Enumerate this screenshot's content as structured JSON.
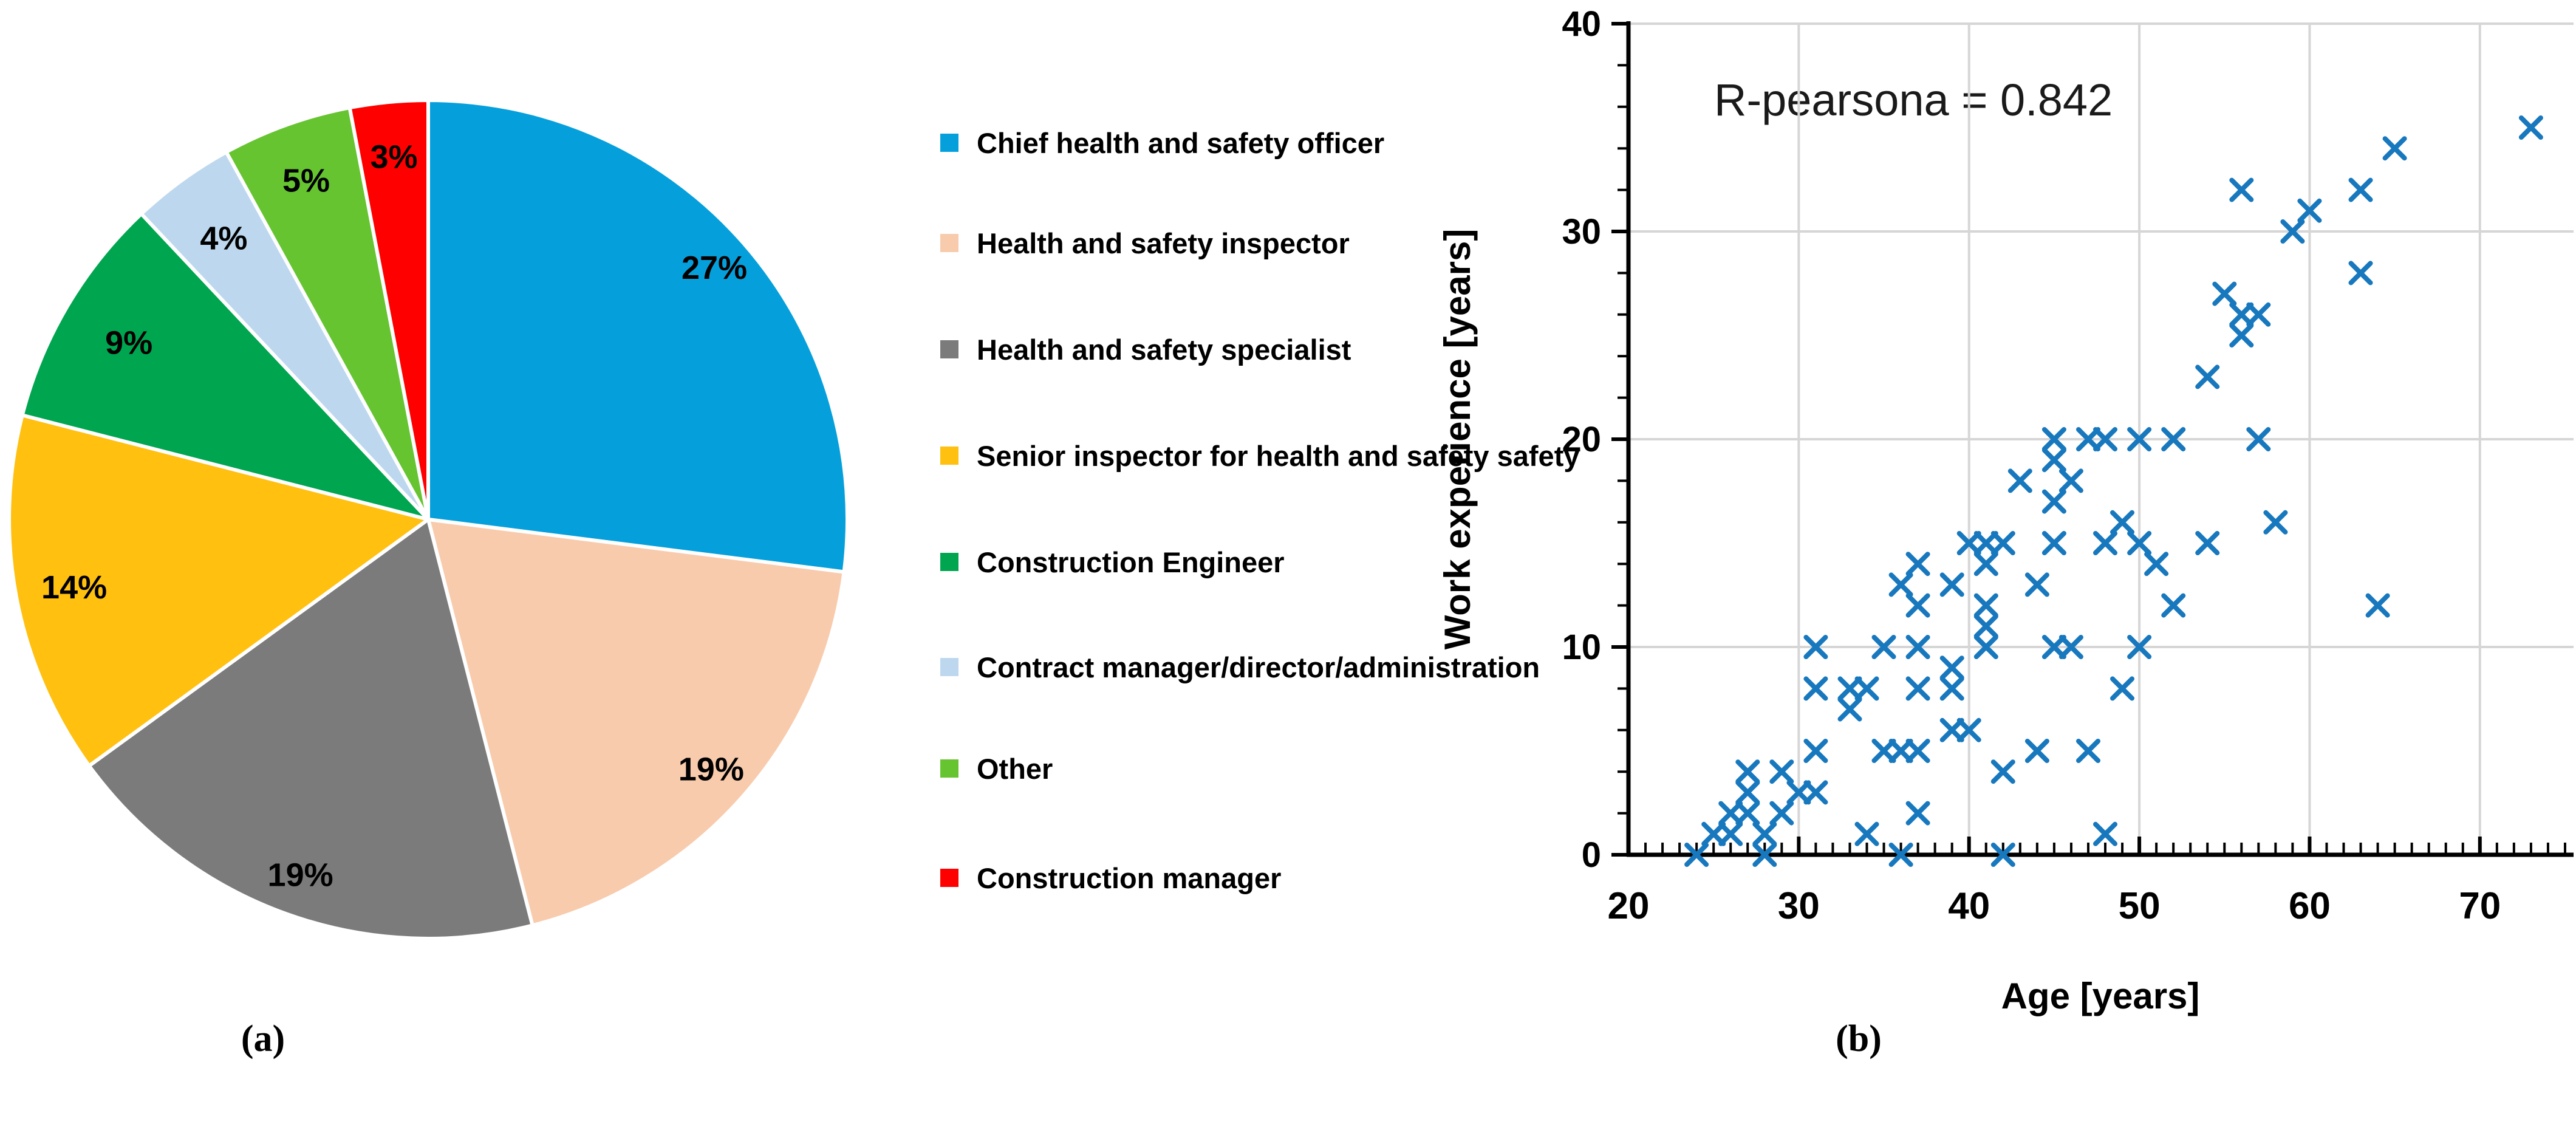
{
  "figure": {
    "caption_a": "(a)",
    "caption_b": "(b)",
    "background": "#ffffff"
  },
  "chart_data": [
    {
      "type": "pie",
      "title": "",
      "legend_position": "right",
      "start_angle_deg": 0,
      "direction": "clockwise",
      "slices": [
        {
          "label": "Chief health and safety officer",
          "value": 27,
          "label_text": "27%",
          "color": "#05A0DC",
          "label_r": 0.91
        },
        {
          "label": "Health and safety inspector",
          "value": 19,
          "label_text": "19%",
          "color": "#F8CBAD",
          "label_r": 0.9
        },
        {
          "label": "Health and safety specialist",
          "value": 19,
          "label_text": "19%",
          "color": "#7B7B7B",
          "label_r": 0.9
        },
        {
          "label": "Senior inspector for health and safety safety",
          "value": 14,
          "label_text": "14%",
          "color": "#FFC010",
          "label_r": 0.86
        },
        {
          "label": "Construction Engineer",
          "value": 9,
          "label_text": "9%",
          "color": "#00A550",
          "label_r": 0.83
        },
        {
          "label": "Contract manager/director/administration",
          "value": 4,
          "label_text": "4%",
          "color": "#BDD8EE",
          "label_r": 0.83
        },
        {
          "label": "Other",
          "value": 5,
          "label_text": "5%",
          "color": "#66C431",
          "label_r": 0.86
        },
        {
          "label": "Construction manager",
          "value": 3,
          "label_text": "3%",
          "color": "#FF0000",
          "label_r": 0.87
        }
      ]
    },
    {
      "type": "scatter",
      "annotation": "R-pearsona = 0.842",
      "xlabel": "Age [years]",
      "ylabel": "Work experience [years]",
      "xlim": [
        20,
        75.5
      ],
      "ylim": [
        0,
        40
      ],
      "xticks": [
        20,
        30,
        40,
        50,
        60,
        70
      ],
      "yticks": [
        0,
        10,
        20,
        30,
        40
      ],
      "x_minor_step": 1,
      "y_minor_step": 2,
      "grid": true,
      "gridline_color": "#D6D6D6",
      "marker": "x",
      "marker_color": "#1878BE",
      "points": [
        [
          24,
          0
        ],
        [
          25,
          1
        ],
        [
          26,
          1
        ],
        [
          26,
          2
        ],
        [
          27,
          2
        ],
        [
          27,
          3
        ],
        [
          27,
          4
        ],
        [
          28,
          0
        ],
        [
          28,
          1
        ],
        [
          29,
          2
        ],
        [
          29,
          4
        ],
        [
          30,
          3
        ],
        [
          31,
          3
        ],
        [
          31,
          5
        ],
        [
          31,
          8
        ],
        [
          31,
          10
        ],
        [
          33,
          7
        ],
        [
          33,
          8
        ],
        [
          34,
          1
        ],
        [
          34,
          8
        ],
        [
          35,
          5
        ],
        [
          35,
          10
        ],
        [
          36,
          0
        ],
        [
          36,
          5
        ],
        [
          36,
          13
        ],
        [
          37,
          2
        ],
        [
          37,
          5
        ],
        [
          37,
          8
        ],
        [
          37,
          10
        ],
        [
          37,
          12
        ],
        [
          37,
          14
        ],
        [
          39,
          6
        ],
        [
          39,
          8
        ],
        [
          39,
          9
        ],
        [
          39,
          13
        ],
        [
          40,
          6
        ],
        [
          40,
          15
        ],
        [
          41,
          10
        ],
        [
          41,
          11
        ],
        [
          41,
          12
        ],
        [
          41,
          14
        ],
        [
          41,
          15
        ],
        [
          42,
          0
        ],
        [
          42,
          4
        ],
        [
          42,
          15
        ],
        [
          43,
          18
        ],
        [
          44,
          5
        ],
        [
          44,
          13
        ],
        [
          45,
          10
        ],
        [
          45,
          15
        ],
        [
          45,
          17
        ],
        [
          45,
          19
        ],
        [
          45,
          20
        ],
        [
          46,
          10
        ],
        [
          46,
          18
        ],
        [
          47,
          5
        ],
        [
          47,
          20
        ],
        [
          48,
          1
        ],
        [
          48,
          15
        ],
        [
          48,
          20
        ],
        [
          49,
          8
        ],
        [
          49,
          16
        ],
        [
          50,
          10
        ],
        [
          50,
          15
        ],
        [
          50,
          20
        ],
        [
          51,
          14
        ],
        [
          52,
          12
        ],
        [
          52,
          20
        ],
        [
          54,
          15
        ],
        [
          54,
          23
        ],
        [
          55,
          27
        ],
        [
          56,
          25
        ],
        [
          56,
          26
        ],
        [
          56,
          32
        ],
        [
          57,
          20
        ],
        [
          57,
          26
        ],
        [
          58,
          16
        ],
        [
          59,
          30
        ],
        [
          60,
          31
        ],
        [
          63,
          28
        ],
        [
          63,
          32
        ],
        [
          64,
          12
        ],
        [
          65,
          34
        ],
        [
          73,
          35
        ]
      ]
    }
  ]
}
